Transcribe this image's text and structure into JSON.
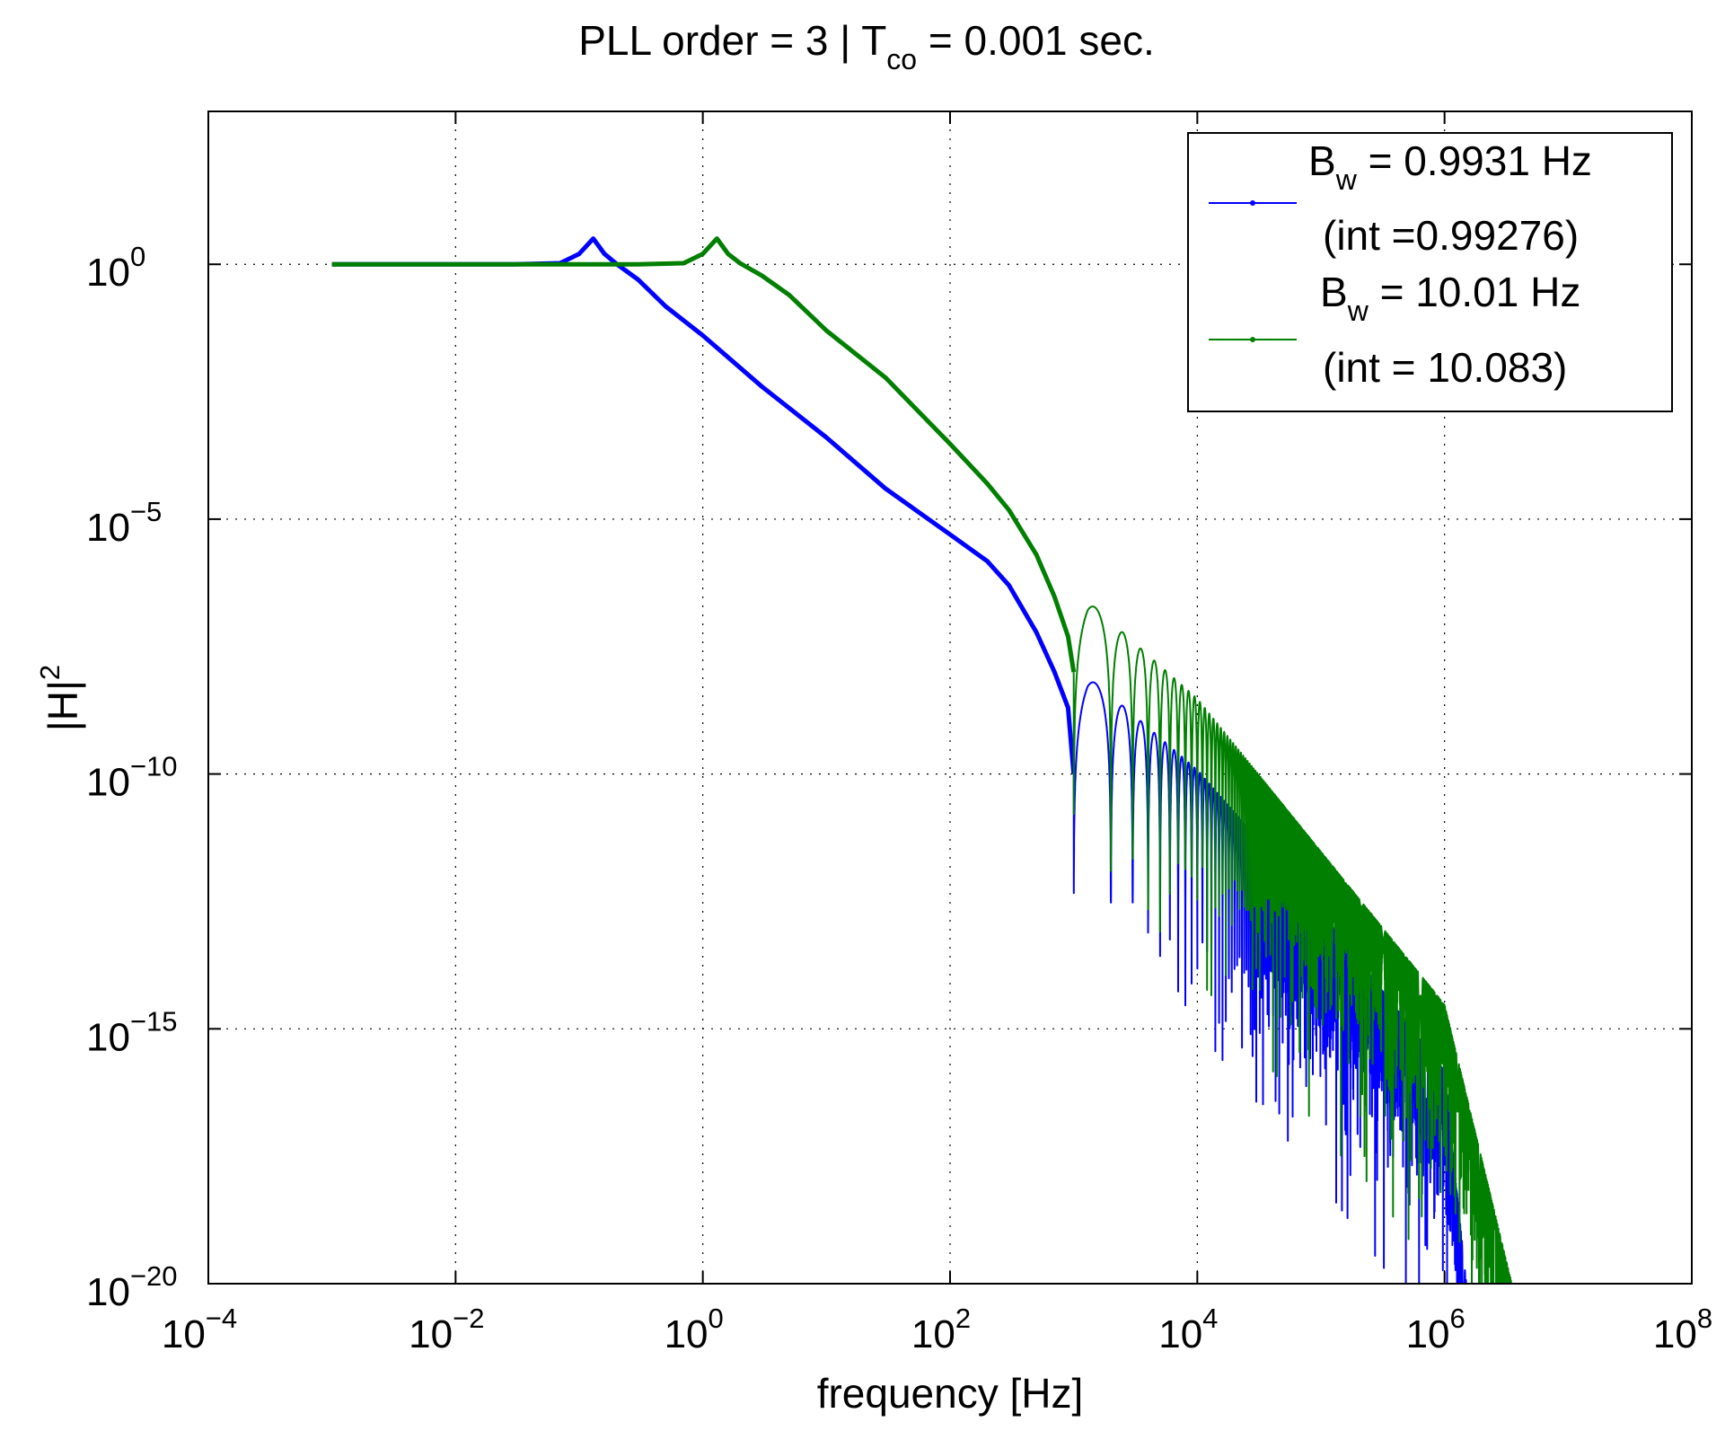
{
  "chart_data": {
    "type": "line",
    "x_scale": "log",
    "y_scale": "log",
    "title": {
      "main": "PLL order = 3  |  T",
      "sub": "co",
      "tail": " = 0.001 sec."
    },
    "xlabel": "frequency [Hz]",
    "ylabel": {
      "base": "|H|",
      "sup": "2"
    },
    "xlim": [
      0.0001,
      100000000
    ],
    "ylim": [
      1e-20,
      1000
    ],
    "grid": true,
    "legend_position": "top-right",
    "x_ticks": [
      {
        "value": 0.0001,
        "base": "10",
        "exp": "−4"
      },
      {
        "value": 0.01,
        "base": "10",
        "exp": "−2"
      },
      {
        "value": 1,
        "base": "10",
        "exp": "0"
      },
      {
        "value": 100,
        "base": "10",
        "exp": "2"
      },
      {
        "value": 10000,
        "base": "10",
        "exp": "4"
      },
      {
        "value": 1000000,
        "base": "10",
        "exp": "6"
      },
      {
        "value": 100000000,
        "base": "10",
        "exp": "8"
      }
    ],
    "y_ticks": [
      {
        "value": 1,
        "base": "10",
        "exp": "0"
      },
      {
        "value": 1e-05,
        "base": "10",
        "exp": "−5"
      },
      {
        "value": 1e-10,
        "base": "10",
        "exp": "−10"
      },
      {
        "value": 1e-15,
        "base": "10",
        "exp": "−15"
      },
      {
        "value": 1e-20,
        "base": "10",
        "exp": "−20"
      }
    ],
    "series": [
      {
        "name": "Bw = 0.9931 Hz (int =0.99276)",
        "legend_line1": {
          "B": "B",
          "sub": "w",
          "rest": " = 0.9931 Hz"
        },
        "legend_line2": "(int =0.99276)",
        "color": "#0000ff",
        "points": [
          [
            0.001,
            1
          ],
          [
            0.03,
            1
          ],
          [
            0.07,
            1.05
          ],
          [
            0.1,
            1.6
          ],
          [
            0.13,
            3.2
          ],
          [
            0.16,
            1.6
          ],
          [
            0.2,
            1.02
          ],
          [
            0.3,
            0.5
          ],
          [
            0.5,
            0.15
          ],
          [
            1,
            0.04
          ],
          [
            3,
            0.004
          ],
          [
            10,
            0.0004
          ],
          [
            30,
            4e-05
          ],
          [
            100,
            5e-06
          ],
          [
            200,
            1.5e-06
          ],
          [
            300,
            5e-07
          ],
          [
            500,
            6e-08
          ],
          [
            700,
            1e-08
          ],
          [
            900,
            2e-09
          ],
          [
            1000,
            1e-10
          ]
        ],
        "lobe_envelope": [
          [
            1300,
            8e-09
          ],
          [
            3000,
            1.5e-09
          ],
          [
            10000,
            1.2e-10
          ],
          [
            100000,
            2e-13
          ],
          [
            1000000,
            1.5e-16
          ],
          [
            1500000,
            1e-20
          ]
        ],
        "dip_floor": [
          [
            1000,
            3e-13
          ],
          [
            3000,
            3e-13
          ],
          [
            10000,
            1e-15
          ],
          [
            100000,
            1e-18
          ],
          [
            400000,
            1e-20
          ]
        ]
      },
      {
        "name": "Bw = 10.01 Hz (int = 10.083)",
        "legend_line1": {
          "B": "B",
          "sub": "w",
          "rest": " = 10.01 Hz"
        },
        "legend_line2": "(int = 10.083)",
        "color": "#007f00",
        "points": [
          [
            0.001,
            1
          ],
          [
            0.3,
            1
          ],
          [
            0.7,
            1.05
          ],
          [
            1,
            1.6
          ],
          [
            1.3,
            3.2
          ],
          [
            1.6,
            1.6
          ],
          [
            2,
            1.05
          ],
          [
            3,
            0.6
          ],
          [
            5,
            0.25
          ],
          [
            10,
            0.05
          ],
          [
            30,
            0.006
          ],
          [
            100,
            0.0003
          ],
          [
            200,
            5e-05
          ],
          [
            300,
            1.5e-05
          ],
          [
            500,
            2e-06
          ],
          [
            700,
            3e-07
          ],
          [
            900,
            5e-08
          ],
          [
            1000,
            1e-08
          ]
        ],
        "lobe_envelope": [
          [
            1300,
            2.5e-07
          ],
          [
            3000,
            4e-08
          ],
          [
            10000,
            3e-09
          ],
          [
            100000,
            3e-12
          ],
          [
            1000000,
            3e-15
          ],
          [
            3500000,
            1e-20
          ]
        ],
        "dip_floor": [
          [
            1000,
            1e-11
          ],
          [
            10000,
            1e-14
          ],
          [
            100000,
            1e-17
          ],
          [
            1000000,
            1e-20
          ]
        ]
      }
    ]
  }
}
